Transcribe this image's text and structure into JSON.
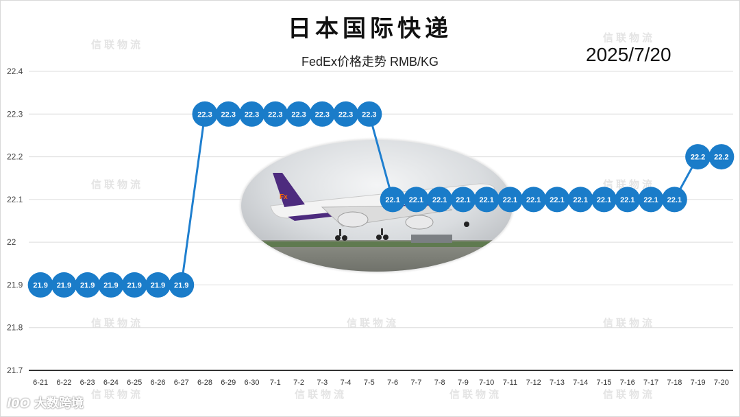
{
  "header": {
    "title": "日本国际快递",
    "subtitle": "FedEx价格走势 RMB/KG",
    "date": "2025/7/20"
  },
  "watermark": "信联物流",
  "brand": {
    "logo": "l0O",
    "name": "大数跨境"
  },
  "photo": {
    "description": "FedEx cargo plane taking off"
  },
  "colors": {
    "marker": "#1a7cc9",
    "line": "#1f7fcf",
    "grid": "#dcdcdc"
  },
  "chart_data": {
    "type": "line",
    "title": "FedEx价格走势 RMB/KG",
    "categories": [
      "6-21",
      "6-22",
      "6-23",
      "6-24",
      "6-25",
      "6-26",
      "6-27",
      "6-28",
      "6-29",
      "6-30",
      "7-1",
      "7-2",
      "7-3",
      "7-4",
      "7-5",
      "7-6",
      "7-7",
      "7-8",
      "7-9",
      "7-10",
      "7-11",
      "7-12",
      "7-13",
      "7-14",
      "7-15",
      "7-16",
      "7-17",
      "7-18",
      "7-19",
      "7-20"
    ],
    "values": [
      21.9,
      21.9,
      21.9,
      21.9,
      21.9,
      21.9,
      21.9,
      22.3,
      22.3,
      22.3,
      22.3,
      22.3,
      22.3,
      22.3,
      22.3,
      22.1,
      22.1,
      22.1,
      22.1,
      22.1,
      22.1,
      22.1,
      22.1,
      22.1,
      22.1,
      22.1,
      22.1,
      22.1,
      22.2,
      22.2
    ],
    "ylim": [
      21.7,
      22.4
    ],
    "yticks": [
      "21.7",
      "21.8",
      "21.9",
      "22",
      "22.1",
      "22.2",
      "22.3",
      "22.4"
    ],
    "grid": true,
    "data_labels": true
  }
}
